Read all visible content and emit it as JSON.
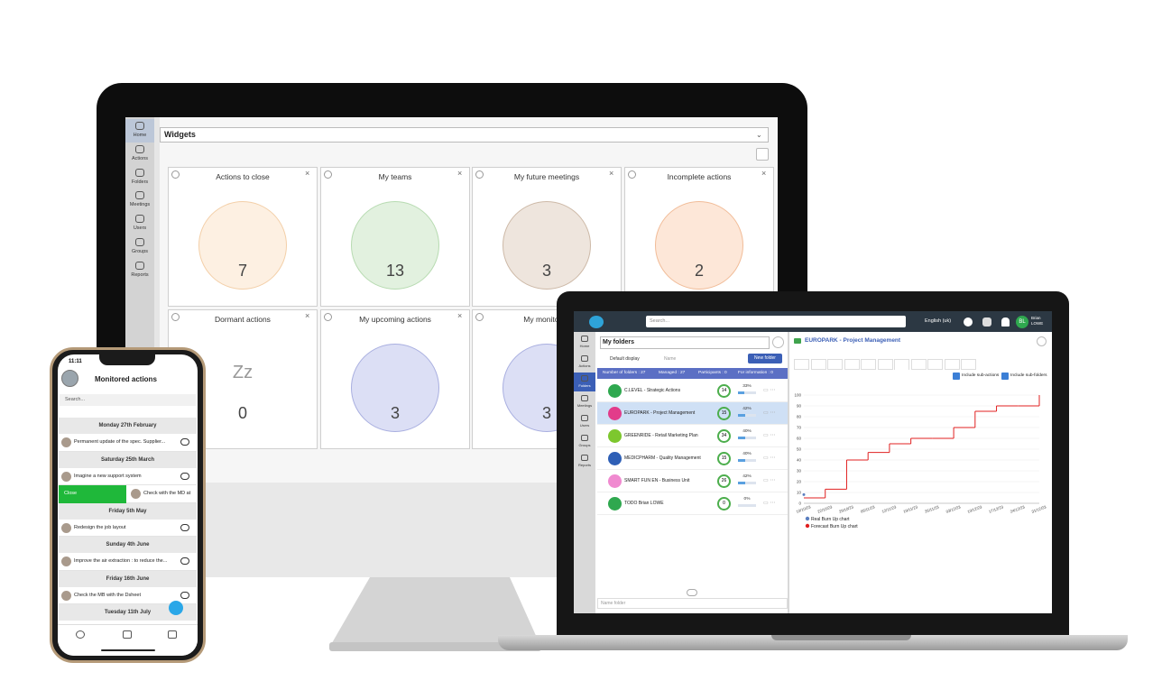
{
  "desktop": {
    "sidebar": [
      "Home",
      "Actions",
      "Folders",
      "Meetings",
      "Users",
      "Groups",
      "Reports"
    ],
    "header": "Widgets",
    "widgets": [
      {
        "title": "Actions to close",
        "value": 7
      },
      {
        "title": "My teams",
        "value": 13
      },
      {
        "title": "My future meetings",
        "value": 3
      },
      {
        "title": "Incomplete actions",
        "value": 2
      },
      {
        "title": "Dormant actions",
        "value": 0
      },
      {
        "title": "My upcoming actions",
        "value": 3
      },
      {
        "title": "My monitored",
        "value": 3
      }
    ]
  },
  "laptop": {
    "search": "Search...",
    "language": "English (uk)",
    "user": {
      "initials": "BL",
      "name": "Brian LOWE"
    },
    "sidebar": [
      "Home",
      "Actions",
      "Folders",
      "Meetings",
      "Users",
      "Groups",
      "Reports"
    ],
    "panel_title": "My folders",
    "display": "Default display",
    "sort": "Name",
    "new_folder": "New folder",
    "stats": [
      "Number of folders : 27",
      "Managed : 27",
      "Participants : 0",
      "For information : 0"
    ],
    "folders": [
      {
        "name": "C.LEVEL - Strategic Actions",
        "count": 14,
        "progress": {
          "value": 33,
          "label": "33%"
        }
      },
      {
        "name": "EUROPARK - Project Management",
        "count": 15,
        "progress": {
          "value": 42,
          "label": "42%"
        }
      },
      {
        "name": "GREENRIDE - Retail Marketing Plan",
        "count": 34,
        "progress": {
          "value": 40,
          "label": "40%"
        }
      },
      {
        "name": "MEDICPHARM - Quality Management",
        "count": 15,
        "progress": {
          "value": 40,
          "label": "40%"
        }
      },
      {
        "name": "SMART FUN EN - Business Unit",
        "count": 26,
        "progress": {
          "value": 42,
          "label": "42%"
        }
      },
      {
        "name": "TODO Brian LOWE",
        "count": 0,
        "progress": {
          "value": 0,
          "label": "0%"
        }
      }
    ],
    "name_folder": "Name folder",
    "detail_title": "EUROPARK - Project Management",
    "options": [
      "Include sub-actions",
      "Include sub-folders"
    ],
    "chart": {
      "type": "line",
      "ylim": [
        0,
        100
      ],
      "yticks": [
        0,
        10,
        20,
        30,
        40,
        50,
        60,
        70,
        80,
        90,
        100
      ],
      "categories": [
        "10/10/23",
        "22/10/23",
        "29/10/23",
        "05/11/23",
        "12/11/23",
        "19/11/23",
        "26/11/23",
        "03/12/23",
        "10/12/23",
        "17/12/23",
        "24/12/23",
        "31/12/23"
      ],
      "series": [
        {
          "name": "Real Burn Up chart",
          "color": "#5b7fc0",
          "values": [
            8,
            null,
            null,
            null,
            null,
            null,
            null,
            null,
            null,
            null,
            null,
            null
          ]
        },
        {
          "name": "Forecast Burn Up chart",
          "color": "#e02020",
          "values": [
            5,
            13,
            40,
            47,
            55,
            60,
            60,
            70,
            85,
            90,
            90,
            100
          ]
        }
      ]
    }
  },
  "phone": {
    "time": "11:11",
    "title": "Monitored actions",
    "search": "Search...",
    "sections": [
      {
        "date": "Monday 27th February",
        "items": [
          {
            "text": "Permanent update of the spec. Supplier..."
          }
        ]
      },
      {
        "date": "Saturday 25th March",
        "items": [
          {
            "text": "Imagine a new support system"
          },
          {
            "text": "Check with the MD at",
            "swipe_action": "Close"
          }
        ]
      },
      {
        "date": "Friday 5th May",
        "items": [
          {
            "text": "Redesign the job layout"
          }
        ]
      },
      {
        "date": "Sunday 4th June",
        "items": [
          {
            "text": "Improve the air extraction : to reduce the..."
          }
        ]
      },
      {
        "date": "Friday 16th June",
        "items": [
          {
            "text": "Check the MB with the Dsheet"
          }
        ]
      },
      {
        "date": "Tuesday 11th July",
        "items": []
      }
    ]
  }
}
